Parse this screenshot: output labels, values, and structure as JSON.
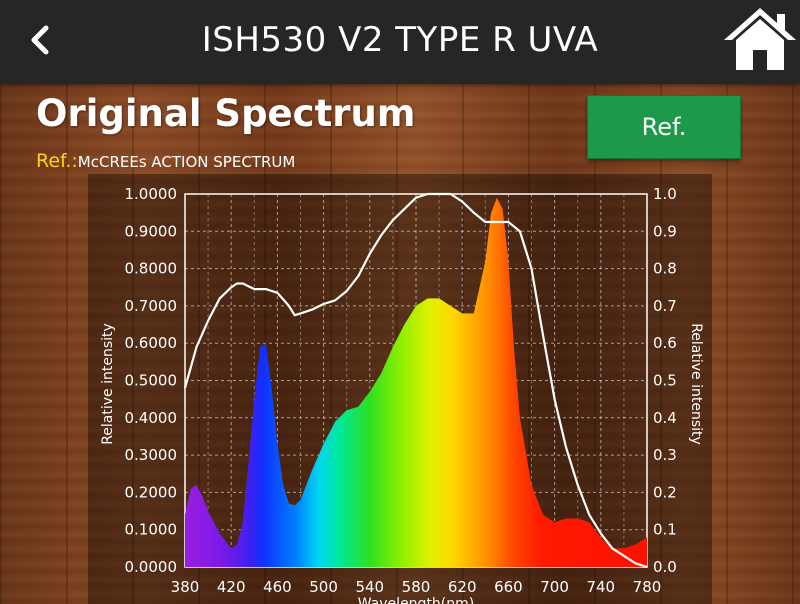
{
  "header": {
    "title": "ISH530 V2 TYPE R UVA",
    "back_icon": "chevron-left-icon",
    "home_icon": "home-icon"
  },
  "page": {
    "heading": "Original Spectrum",
    "ref_key": "Ref.:",
    "ref_name": "McCREEs ACTION SPECTRUM",
    "ref_button": "Ref."
  },
  "colors": {
    "header_bg": "#262626",
    "ref_button_bg": "#1c9a4a",
    "ref_key_color": "#ffd21e"
  },
  "chart_data": {
    "type": "area",
    "xlabel": "Wavelength(nm)",
    "ylabel_left": "Relative intensity",
    "ylabel_right": "Relative intensity",
    "xlim": [
      380,
      780
    ],
    "ylim": [
      0,
      1
    ],
    "x_ticks": [
      "380",
      "420",
      "460",
      "500",
      "540",
      "580",
      "620",
      "660",
      "700",
      "740",
      "780"
    ],
    "y_ticks_left": [
      "0.0000",
      "0.1000",
      "0.2000",
      "0.3000",
      "0.4000",
      "0.5000",
      "0.6000",
      "0.7000",
      "0.8000",
      "0.9000",
      "1.0000"
    ],
    "y_ticks_right": [
      "0.0",
      "0.1",
      "0.2",
      "0.3",
      "0.4",
      "0.5",
      "0.6",
      "0.7",
      "0.8",
      "0.9",
      "1.0"
    ],
    "grid": true,
    "series": [
      {
        "style": "spectrum-fill",
        "x": [
          380,
          385,
          390,
          395,
          400,
          410,
          420,
          425,
          430,
          435,
          440,
          445,
          450,
          455,
          460,
          465,
          470,
          475,
          480,
          490,
          500,
          510,
          520,
          530,
          540,
          550,
          560,
          570,
          580,
          590,
          600,
          610,
          620,
          630,
          640,
          645,
          650,
          655,
          660,
          665,
          670,
          680,
          690,
          700,
          710,
          720,
          730,
          740,
          750,
          760,
          770,
          780
        ],
        "y": [
          0.14,
          0.21,
          0.22,
          0.19,
          0.15,
          0.09,
          0.05,
          0.06,
          0.12,
          0.28,
          0.45,
          0.59,
          0.6,
          0.48,
          0.33,
          0.22,
          0.17,
          0.165,
          0.18,
          0.26,
          0.33,
          0.39,
          0.42,
          0.43,
          0.47,
          0.52,
          0.59,
          0.65,
          0.7,
          0.72,
          0.72,
          0.7,
          0.68,
          0.68,
          0.82,
          0.95,
          0.99,
          0.96,
          0.82,
          0.58,
          0.4,
          0.22,
          0.14,
          0.12,
          0.13,
          0.13,
          0.12,
          0.08,
          0.05,
          0.05,
          0.06,
          0.08
        ]
      },
      {
        "name": "McCREEs ACTION SPECTRUM",
        "style": "white-line",
        "x": [
          380,
          390,
          400,
          410,
          420,
          425,
          430,
          440,
          450,
          460,
          470,
          475,
          480,
          490,
          500,
          510,
          520,
          530,
          540,
          550,
          560,
          570,
          580,
          590,
          600,
          610,
          620,
          630,
          640,
          650,
          660,
          670,
          680,
          690,
          700,
          710,
          720,
          730,
          740,
          750,
          760,
          770,
          780
        ],
        "y": [
          0.48,
          0.59,
          0.66,
          0.72,
          0.75,
          0.76,
          0.76,
          0.745,
          0.745,
          0.735,
          0.7,
          0.675,
          0.68,
          0.69,
          0.705,
          0.715,
          0.74,
          0.78,
          0.84,
          0.89,
          0.93,
          0.96,
          0.99,
          1.0,
          1.0,
          1.0,
          0.98,
          0.95,
          0.925,
          0.925,
          0.925,
          0.9,
          0.8,
          0.62,
          0.45,
          0.32,
          0.22,
          0.14,
          0.09,
          0.05,
          0.03,
          0.01,
          0.0
        ]
      }
    ]
  }
}
